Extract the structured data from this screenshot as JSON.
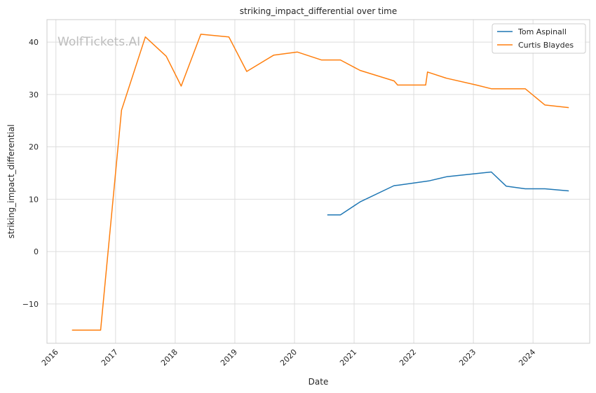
{
  "chart_data": {
    "type": "line",
    "title": "striking_impact_differential over time",
    "xlabel": "Date",
    "ylabel": "striking_impact_differential",
    "watermark": "WolfTickets.AI",
    "xlim": [
      2015.85,
      2024.95
    ],
    "ylim": [
      -17.5,
      44.3
    ],
    "x_ticks": [
      2016,
      2017,
      2018,
      2019,
      2020,
      2021,
      2022,
      2023,
      2024
    ],
    "x_tick_labels": [
      "2016",
      "2017",
      "2018",
      "2019",
      "2020",
      "2021",
      "2022",
      "2023",
      "2024"
    ],
    "y_ticks": [
      -10,
      0,
      10,
      20,
      30,
      40
    ],
    "y_tick_labels": [
      "−10",
      "0",
      "10",
      "20",
      "30",
      "40"
    ],
    "grid": true,
    "legend_position": "top-right",
    "series": [
      {
        "name": "Tom Aspinall",
        "color": "#1f77b4",
        "x": [
          2020.55,
          2020.77,
          2021.1,
          2021.67,
          2021.75,
          2022.25,
          2022.55,
          2023.3,
          2023.55,
          2023.87,
          2024.2,
          2024.6
        ],
        "y": [
          7.0,
          7.0,
          9.5,
          12.6,
          12.7,
          13.5,
          14.3,
          15.2,
          12.5,
          12.0,
          12.0,
          11.6
        ]
      },
      {
        "name": "Curtis Blaydes",
        "color": "#ff7f0e",
        "x": [
          2016.27,
          2016.75,
          2017.1,
          2017.5,
          2017.85,
          2018.1,
          2018.43,
          2018.9,
          2019.2,
          2019.65,
          2020.05,
          2020.45,
          2020.77,
          2021.1,
          2021.67,
          2021.73,
          2022.2,
          2022.23,
          2022.55,
          2023.05,
          2023.3,
          2023.87,
          2024.2,
          2024.6
        ],
        "y": [
          -15.0,
          -15.0,
          27.0,
          41.0,
          37.3,
          31.6,
          41.5,
          41.0,
          34.4,
          37.5,
          38.1,
          36.6,
          36.6,
          34.6,
          32.6,
          31.8,
          31.8,
          34.3,
          33.1,
          31.8,
          31.1,
          31.1,
          28.0,
          27.5
        ]
      }
    ]
  }
}
